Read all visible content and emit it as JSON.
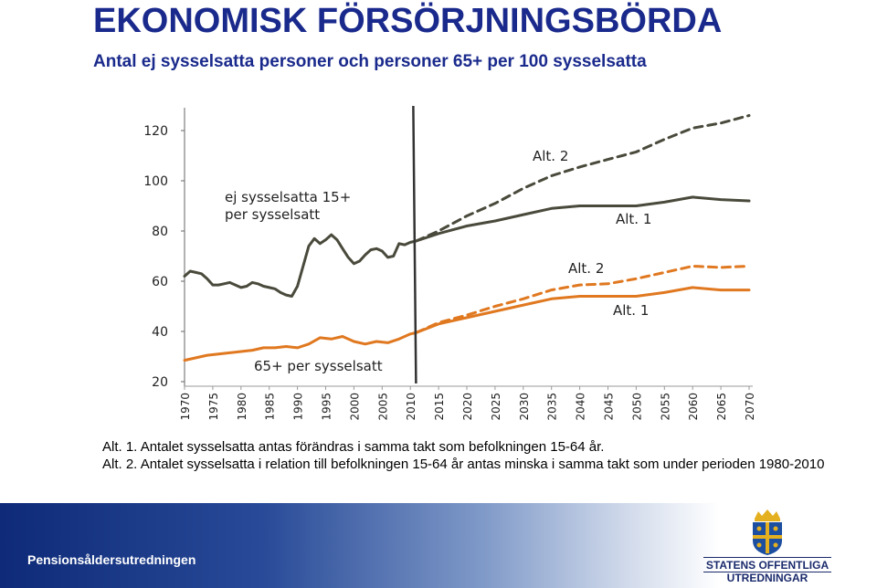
{
  "title": "EKONOMISK FÖRSÖRJNINGSBÖRDA",
  "subtitle": "Antal ej sysselsatta personer och personer 65+ per 100 sysselsatta",
  "notes": [
    "Alt. 1. Antalet sysselsatta antas förändras i samma takt som befolkningen 15-64 år.",
    "Alt. 2. Antalet sysselsatta i relation till befolkningen 15-64 år antas minska i samma takt som under perioden 1980-2010"
  ],
  "footer": {
    "org": "Pensionsåldersutredningen",
    "logo_line1": "STATENS OFFENTLIGA",
    "logo_line2": "UTREDNINGAR"
  },
  "colors": {
    "dark": "#4a4a3c",
    "orange": "#e07820",
    "title": "#1a2a8c"
  },
  "chart_data": {
    "type": "line",
    "ylim": [
      20,
      120
    ],
    "xlim": [
      1970,
      2070
    ],
    "yticks": [
      20,
      40,
      60,
      80,
      100,
      120
    ],
    "xticks": [
      1970,
      1975,
      1980,
      1985,
      1990,
      1995,
      2000,
      2005,
      2010,
      2015,
      2020,
      2025,
      2030,
      2035,
      2040,
      2045,
      2050,
      2055,
      2060,
      2065,
      2070
    ],
    "divider_year": 2011,
    "annotations": {
      "non_employed": [
        "ej sysselsatta 15+",
        "per sysselsatt"
      ],
      "elderly": "65+ per sysselsatt",
      "dark_alt2": "Alt. 2",
      "dark_alt1": "Alt. 1",
      "orange_alt2": "Alt. 2",
      "orange_alt1": "Alt. 1"
    },
    "series": [
      {
        "key": "dark_hist",
        "style": "solid",
        "color": "dark",
        "x": [
          1970,
          1971,
          1972,
          1973,
          1974,
          1975,
          1976,
          1977,
          1978,
          1979,
          1980,
          1981,
          1982,
          1983,
          1984,
          1985,
          1986,
          1987,
          1988,
          1989,
          1990,
          1991,
          1992,
          1993,
          1994,
          1995,
          1996,
          1997,
          1998,
          1999,
          2000,
          2001,
          2002,
          2003,
          2004,
          2005,
          2006,
          2007,
          2008,
          2009,
          2010,
          2011
        ],
        "y": [
          62,
          64,
          63.5,
          63,
          61,
          58.5,
          58.5,
          59,
          59.5,
          58.5,
          57.5,
          58,
          59.5,
          59,
          58,
          57.5,
          57,
          55.5,
          54.5,
          54,
          58,
          66,
          74,
          77,
          75,
          76.5,
          78.5,
          76.5,
          73,
          69.5,
          67,
          68,
          70.5,
          72.5,
          73,
          72,
          69.5,
          70,
          75,
          74.5,
          75.5,
          76
        ]
      },
      {
        "key": "dark_alt1",
        "style": "solid",
        "color": "dark",
        "x": [
          2011,
          2015,
          2020,
          2025,
          2030,
          2035,
          2040,
          2045,
          2050,
          2055,
          2060,
          2065,
          2070
        ],
        "y": [
          76,
          79,
          82,
          84,
          86.5,
          89,
          90,
          90,
          90,
          91.5,
          93.5,
          92.5,
          92
        ]
      },
      {
        "key": "dark_alt2",
        "style": "dashed",
        "color": "dark",
        "x": [
          2011,
          2015,
          2020,
          2025,
          2030,
          2035,
          2040,
          2045,
          2050,
          2055,
          2060,
          2065,
          2070
        ],
        "y": [
          76,
          80,
          86,
          91,
          97,
          102,
          105.5,
          108.5,
          111.5,
          116.5,
          121,
          123,
          126
        ]
      },
      {
        "key": "orange_hist",
        "style": "solid",
        "color": "orange",
        "x": [
          1970,
          1972,
          1974,
          1976,
          1978,
          1980,
          1982,
          1984,
          1986,
          1988,
          1990,
          1992,
          1994,
          1996,
          1998,
          2000,
          2002,
          2004,
          2006,
          2008,
          2010,
          2011
        ],
        "y": [
          28.5,
          29.5,
          30.5,
          31,
          31.5,
          32,
          32.5,
          33.5,
          33.5,
          34,
          33.5,
          35,
          37.5,
          37,
          38,
          36,
          35,
          36,
          35.5,
          37,
          39,
          39.5
        ]
      },
      {
        "key": "orange_alt1",
        "style": "solid",
        "color": "orange",
        "x": [
          2011,
          2015,
          2020,
          2025,
          2030,
          2035,
          2040,
          2045,
          2050,
          2055,
          2060,
          2065,
          2070
        ],
        "y": [
          39.5,
          43,
          45.5,
          48,
          50.5,
          53,
          54,
          54,
          54,
          55.5,
          57.5,
          56.5,
          56.5
        ]
      },
      {
        "key": "orange_alt2",
        "style": "dashed",
        "color": "orange",
        "x": [
          2011,
          2015,
          2020,
          2025,
          2030,
          2035,
          2040,
          2045,
          2050,
          2055,
          2060,
          2065,
          2070
        ],
        "y": [
          39.5,
          43.5,
          46.5,
          50,
          53,
          56.5,
          58.5,
          59,
          61,
          63.5,
          66,
          65.5,
          66
        ]
      }
    ]
  }
}
